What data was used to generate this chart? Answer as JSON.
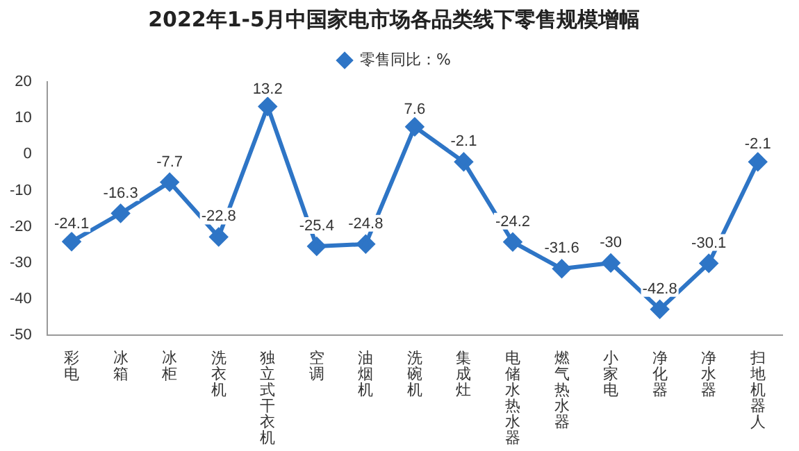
{
  "chart_data": {
    "type": "line",
    "title": "2022年1-5月中国家电市场各品类线下零售规模增幅",
    "categories": [
      "彩电",
      "冰箱",
      "冰柜",
      "洗衣机",
      "独立式干衣机",
      "空调",
      "油烟机",
      "洗碗机",
      "集成灶",
      "电储水热水器",
      "燃气热水器",
      "小家电",
      "净化器",
      "净水器",
      "扫地机器人"
    ],
    "series": [
      {
        "name": "零售同比：%",
        "color": "#2e75c6",
        "values": [
          -24.1,
          -16.3,
          -7.7,
          -22.8,
          13.2,
          -25.4,
          -24.8,
          7.6,
          -2.1,
          -24.2,
          -31.6,
          -30,
          -42.8,
          -30.1,
          -2.1
        ]
      }
    ],
    "ylim": [
      -50,
      20
    ],
    "yticks": [
      -50,
      -40,
      -30,
      -20,
      -10,
      0,
      10,
      20
    ],
    "data_labels": true,
    "legend": "top",
    "marker": "diamond",
    "line_style": "solid"
  }
}
